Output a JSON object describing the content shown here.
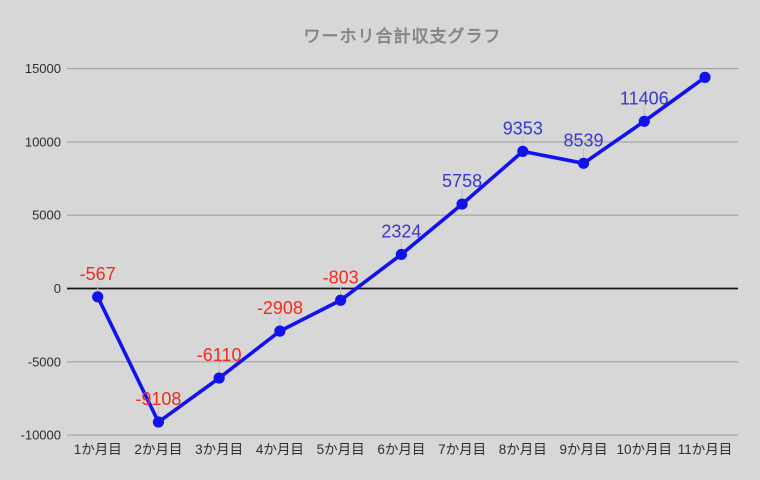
{
  "chart_data": {
    "type": "line",
    "title": "ワーホリ合計収支グラフ",
    "xlabel": "",
    "ylabel": "",
    "categories": [
      "1か月目",
      "2か月目",
      "3か月目",
      "4か月目",
      "5か月目",
      "6か月目",
      "7か月目",
      "8か月目",
      "9か月目",
      "10か月目",
      "11か月目"
    ],
    "values": [
      -567,
      -9108,
      -6110,
      -2908,
      -803,
      2324,
      5758,
      9353,
      8539,
      11406,
      14400
    ],
    "point_labels": [
      "-567",
      "-9108",
      "-6110",
      "-2908",
      "-803",
      "2324",
      "5758",
      "9353",
      "8539",
      "11406",
      ""
    ],
    "last_value_estimated_from_pixels": true,
    "ylim": [
      -10000,
      15000
    ],
    "y_tick_step": 5000,
    "y_ticks": [
      {
        "value": 15000,
        "label": "15000"
      },
      {
        "value": 10000,
        "label": "10000"
      },
      {
        "value": 5000,
        "label": "5000"
      },
      {
        "value": 0,
        "label": "0"
      },
      {
        "value": -5000,
        "label": "-5000"
      },
      {
        "value": -10000,
        "label": "-10000"
      }
    ],
    "grid": "horizontal-only",
    "legend": "none",
    "colors": {
      "background": "#d7d7d7",
      "line": "#1212ee",
      "point": "#1212ee",
      "label_positive": "#3838cf",
      "label_negative": "#f8281a",
      "grid": "#a2a2a2",
      "zero_line": "#141414",
      "title": "#868686",
      "axis_text": "#2d2d2d",
      "leader_line": "#bdbdbd"
    }
  }
}
